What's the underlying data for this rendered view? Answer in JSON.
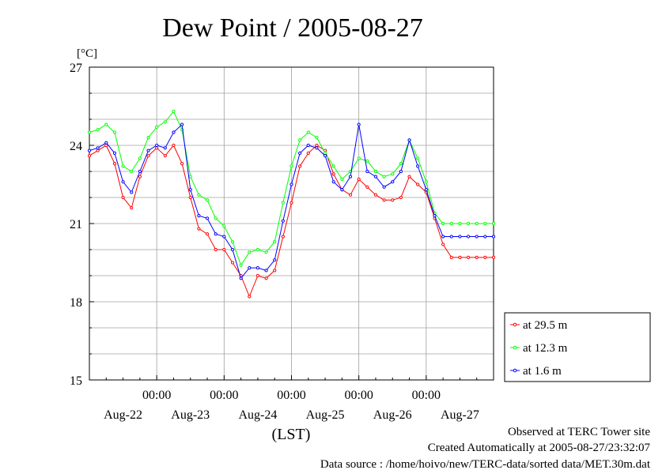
{
  "chart_data": {
    "type": "line",
    "title": "Dew Point / 2005-08-27",
    "ylabel": "[°C]",
    "xlabel": "(LST)",
    "ylim": [
      15,
      27
    ],
    "yticks": [
      15,
      18,
      21,
      24,
      27
    ],
    "xlim_hours": [
      0,
      144
    ],
    "xtick_time_label": "00:00",
    "xtick_time_positions_hours": [
      24,
      48,
      72,
      96,
      120
    ],
    "x_date_labels": [
      "Aug-22",
      "Aug-23",
      "Aug-24",
      "Aug-25",
      "Aug-26",
      "Aug-27"
    ],
    "grid": true,
    "legend_placement": "right",
    "series": [
      {
        "name": "at 29.5 m",
        "color": "#ff0000",
        "x": [
          0,
          3,
          6,
          9,
          12,
          15,
          18,
          21,
          24,
          27,
          30,
          33,
          36,
          39,
          42,
          45,
          48,
          51,
          54,
          57,
          60,
          63,
          66,
          69,
          72,
          75,
          78,
          81,
          84,
          87,
          90,
          93,
          96,
          99,
          102,
          105,
          108,
          111,
          114,
          117,
          120,
          123,
          126,
          129,
          132,
          135,
          138,
          141,
          144
        ],
        "values": [
          23.6,
          23.8,
          24.0,
          23.3,
          22.0,
          21.6,
          22.8,
          23.6,
          23.9,
          23.6,
          24.0,
          23.3,
          22.0,
          20.8,
          20.6,
          20.0,
          20.0,
          19.5,
          19.0,
          18.2,
          19.0,
          18.9,
          19.2,
          20.5,
          21.8,
          23.2,
          23.7,
          24.0,
          23.8,
          22.9,
          22.3,
          22.1,
          22.7,
          22.4,
          22.1,
          21.9,
          21.9,
          22.0,
          22.8,
          22.5,
          22.2,
          21.2,
          20.2,
          19.7,
          19.7,
          19.7,
          19.7,
          19.7,
          19.7
        ]
      },
      {
        "name": "at 12.3 m",
        "color": "#00ff00",
        "x": [
          0,
          3,
          6,
          9,
          12,
          15,
          18,
          21,
          24,
          27,
          30,
          33,
          36,
          39,
          42,
          45,
          48,
          51,
          54,
          57,
          60,
          63,
          66,
          69,
          72,
          75,
          78,
          81,
          84,
          87,
          90,
          93,
          96,
          99,
          102,
          105,
          108,
          111,
          114,
          117,
          120,
          123,
          126,
          129,
          132,
          135,
          138,
          141,
          144
        ],
        "values": [
          24.5,
          24.6,
          24.8,
          24.5,
          23.2,
          23.0,
          23.5,
          24.3,
          24.7,
          24.9,
          25.3,
          24.6,
          22.8,
          22.1,
          21.9,
          21.2,
          20.9,
          20.3,
          19.4,
          19.9,
          20.0,
          19.9,
          20.3,
          21.8,
          23.2,
          24.2,
          24.5,
          24.3,
          23.7,
          23.2,
          22.7,
          23.0,
          23.5,
          23.4,
          23.0,
          22.8,
          22.9,
          23.3,
          24.2,
          23.5,
          22.6,
          21.4,
          21.0,
          21.0,
          21.0,
          21.0,
          21.0,
          21.0,
          21.0
        ]
      },
      {
        "name": "at 1.6 m",
        "color": "#0000ff",
        "x": [
          0,
          3,
          6,
          9,
          12,
          15,
          18,
          21,
          24,
          27,
          30,
          33,
          36,
          39,
          42,
          45,
          48,
          51,
          54,
          57,
          60,
          63,
          66,
          69,
          72,
          75,
          78,
          81,
          84,
          87,
          90,
          93,
          96,
          99,
          102,
          105,
          108,
          111,
          114,
          117,
          120,
          123,
          126,
          129,
          132,
          135,
          138,
          141,
          144
        ],
        "values": [
          23.8,
          23.9,
          24.1,
          23.7,
          22.6,
          22.2,
          23.0,
          23.8,
          24.0,
          23.9,
          24.5,
          24.8,
          22.3,
          21.3,
          21.2,
          20.6,
          20.5,
          20.0,
          18.9,
          19.3,
          19.3,
          19.2,
          19.6,
          21.1,
          22.5,
          23.7,
          24.0,
          23.9,
          23.6,
          22.6,
          22.3,
          22.8,
          24.8,
          23.0,
          22.8,
          22.4,
          22.6,
          23.0,
          24.2,
          23.2,
          22.3,
          21.3,
          20.5,
          20.5,
          20.5,
          20.5,
          20.5,
          20.5,
          20.5
        ]
      }
    ]
  },
  "footer": {
    "line1": "Observed at TERC Tower site",
    "line2": "Created Automatically at 2005-08-27/23:32:07",
    "line3": "Data source : /home/hoivo/new/TERC-data/sorted  data/MET.30m.dat"
  }
}
